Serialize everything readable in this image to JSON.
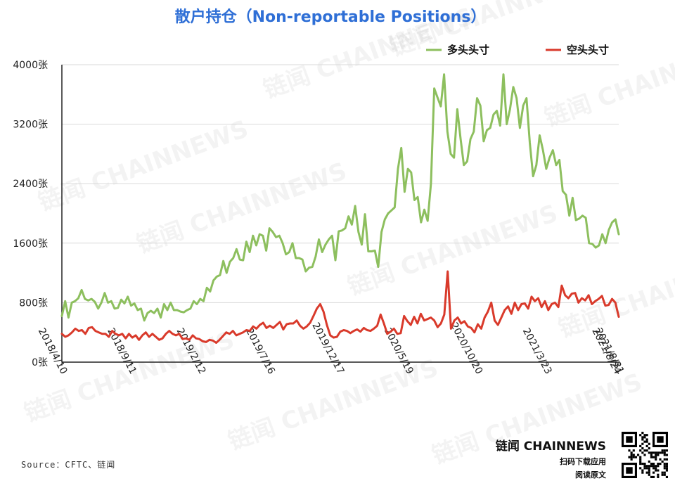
{
  "title": "散户持仓（Non-reportable Positions）",
  "source": "Source：CFTC、链闻",
  "brand": {
    "name": "链闻 CHAINNEWS",
    "line2": "扫码下载应用",
    "line3": "阅读原文"
  },
  "watermark_text": "链闻 CHAINNEWS",
  "chart_data": {
    "type": "line",
    "title": "散户持仓（Non-reportable Positions）",
    "ylim": [
      0,
      4000
    ],
    "yticks": [
      "0张",
      "800张",
      "1600张",
      "2400张",
      "3200张",
      "4000张"
    ],
    "ytick_values": [
      0,
      800,
      1600,
      2400,
      3200,
      4000
    ],
    "x_start": "2018/4/10",
    "x_end": "2021/8/31",
    "xtick_labels": [
      "2018/4/10",
      "2018/9/11",
      "2019/2/12",
      "2019/7/16",
      "2019/12/17",
      "2020/5/19",
      "2020/10/20",
      "2021/3/23",
      "2021/8/24",
      "2021/8/31"
    ],
    "legend_position": "top",
    "grid": true,
    "series": [
      {
        "name": "多头头寸",
        "color": "#8dbf5e",
        "values": [
          620,
          820,
          600,
          800,
          820,
          860,
          970,
          850,
          830,
          850,
          810,
          720,
          800,
          930,
          800,
          820,
          720,
          730,
          840,
          790,
          880,
          760,
          790,
          700,
          720,
          560,
          660,
          690,
          660,
          720,
          600,
          780,
          700,
          800,
          700,
          700,
          680,
          670,
          700,
          720,
          820,
          780,
          850,
          820,
          1000,
          950,
          1100,
          1150,
          1170,
          1360,
          1200,
          1350,
          1400,
          1520,
          1380,
          1370,
          1620,
          1480,
          1700,
          1570,
          1720,
          1700,
          1500,
          1800,
          1750,
          1680,
          1700,
          1600,
          1450,
          1480,
          1600,
          1400,
          1400,
          1380,
          1220,
          1270,
          1280,
          1420,
          1650,
          1480,
          1580,
          1650,
          1700,
          1370,
          1760,
          1770,
          1800,
          1960,
          1850,
          2100,
          1750,
          1580,
          1990,
          1490,
          1490,
          1500,
          1280,
          1750,
          1920,
          2000,
          2040,
          2080,
          2600,
          2880,
          2290,
          2600,
          2550,
          2180,
          2220,
          1880,
          2050,
          1900,
          2400,
          3680,
          3560,
          3440,
          3870,
          3100,
          2800,
          2750,
          3400,
          3000,
          2650,
          2700,
          3000,
          3100,
          3550,
          3450,
          2970,
          3120,
          3150,
          3330,
          3380,
          3180,
          3870,
          3200,
          3400,
          3700,
          3550,
          3150,
          3450,
          3550,
          2950,
          2500,
          2650,
          3050,
          2850,
          2600,
          2750,
          2850,
          2650,
          2720,
          2300,
          2250,
          1970,
          2210,
          1910,
          1930,
          1970,
          1940,
          1600,
          1590,
          1540,
          1570,
          1720,
          1600,
          1780,
          1880,
          1920,
          1720
        ]
      },
      {
        "name": "空头头寸",
        "color": "#d93a2b",
        "values": [
          380,
          340,
          360,
          400,
          450,
          420,
          430,
          380,
          460,
          470,
          420,
          400,
          380,
          380,
          340,
          420,
          380,
          360,
          380,
          320,
          380,
          330,
          360,
          300,
          360,
          400,
          340,
          380,
          340,
          300,
          320,
          380,
          420,
          380,
          360,
          380,
          310,
          320,
          300,
          360,
          320,
          310,
          280,
          270,
          300,
          290,
          260,
          300,
          350,
          400,
          380,
          420,
          360,
          380,
          400,
          430,
          420,
          480,
          450,
          500,
          530,
          460,
          490,
          460,
          500,
          540,
          440,
          510,
          520,
          520,
          560,
          490,
          450,
          480,
          530,
          620,
          720,
          780,
          680,
          500,
          360,
          330,
          340,
          410,
          430,
          420,
          390,
          420,
          440,
          410,
          460,
          430,
          420,
          450,
          490,
          640,
          520,
          380,
          410,
          450,
          380,
          390,
          620,
          550,
          500,
          610,
          520,
          650,
          560,
          580,
          600,
          560,
          470,
          520,
          640,
          1220,
          450,
          560,
          600,
          520,
          550,
          480,
          460,
          400,
          510,
          450,
          600,
          680,
          800,
          560,
          500,
          600,
          700,
          750,
          650,
          800,
          700,
          780,
          790,
          720,
          880,
          820,
          860,
          740,
          820,
          700,
          780,
          800,
          740,
          1030,
          900,
          860,
          920,
          930,
          800,
          860,
          830,
          900,
          780,
          820,
          850,
          890,
          760,
          770,
          850,
          800,
          610
        ]
      }
    ]
  }
}
